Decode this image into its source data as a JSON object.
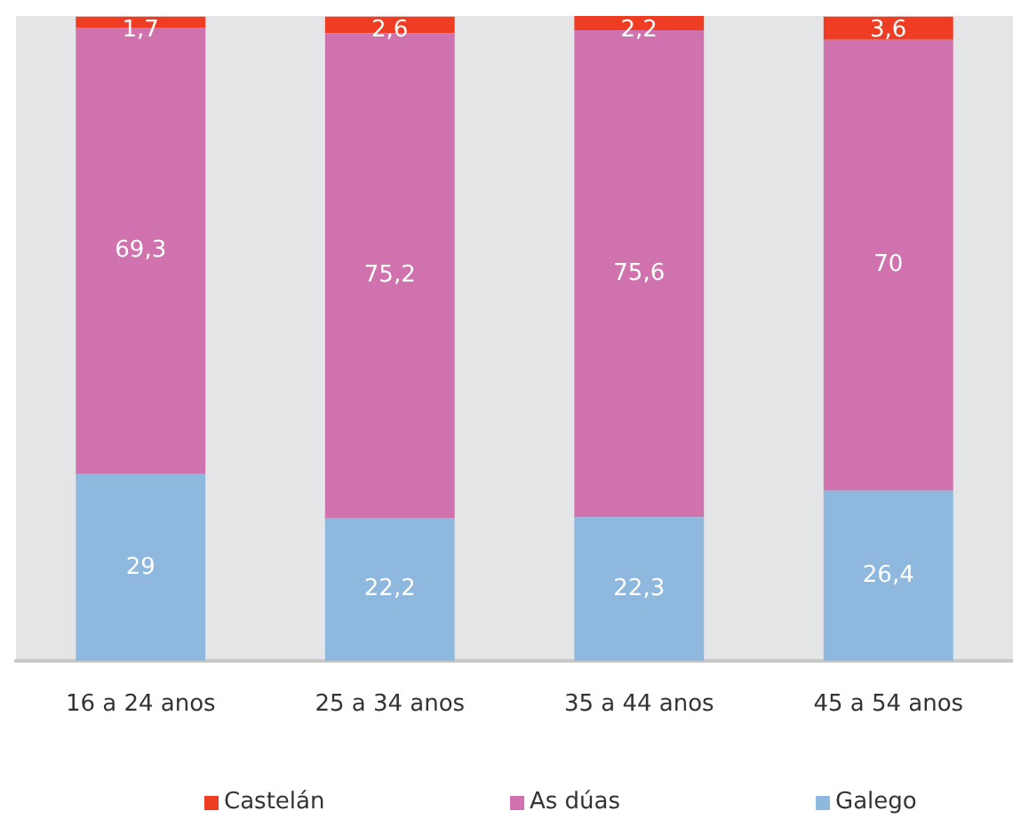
{
  "chart_data": {
    "type": "bar",
    "stacked": true,
    "categories": [
      "16 a 24 anos",
      "25 a 34 anos",
      "35 a 44 anos",
      "45 a 54 anos"
    ],
    "series": [
      {
        "name": "Galego",
        "color": "#8fb8de",
        "values": [
          29,
          22.2,
          22.3,
          26.4
        ],
        "value_labels": [
          "29",
          "22,2",
          "22,3",
          "26,4"
        ]
      },
      {
        "name": "As dúas",
        "color": "#d072ad",
        "values": [
          69.3,
          75.2,
          75.6,
          70
        ],
        "value_labels": [
          "69,3",
          "75,2",
          "75,6",
          "70"
        ]
      },
      {
        "name": "Castelán",
        "color": "#ef3d23",
        "values": [
          1.7,
          2.6,
          2.2,
          3.6
        ],
        "value_labels": [
          "1,7",
          "2,6",
          "2,2",
          "3,6"
        ]
      }
    ],
    "tick_labels": "x",
    "legend": "bottom"
  }
}
